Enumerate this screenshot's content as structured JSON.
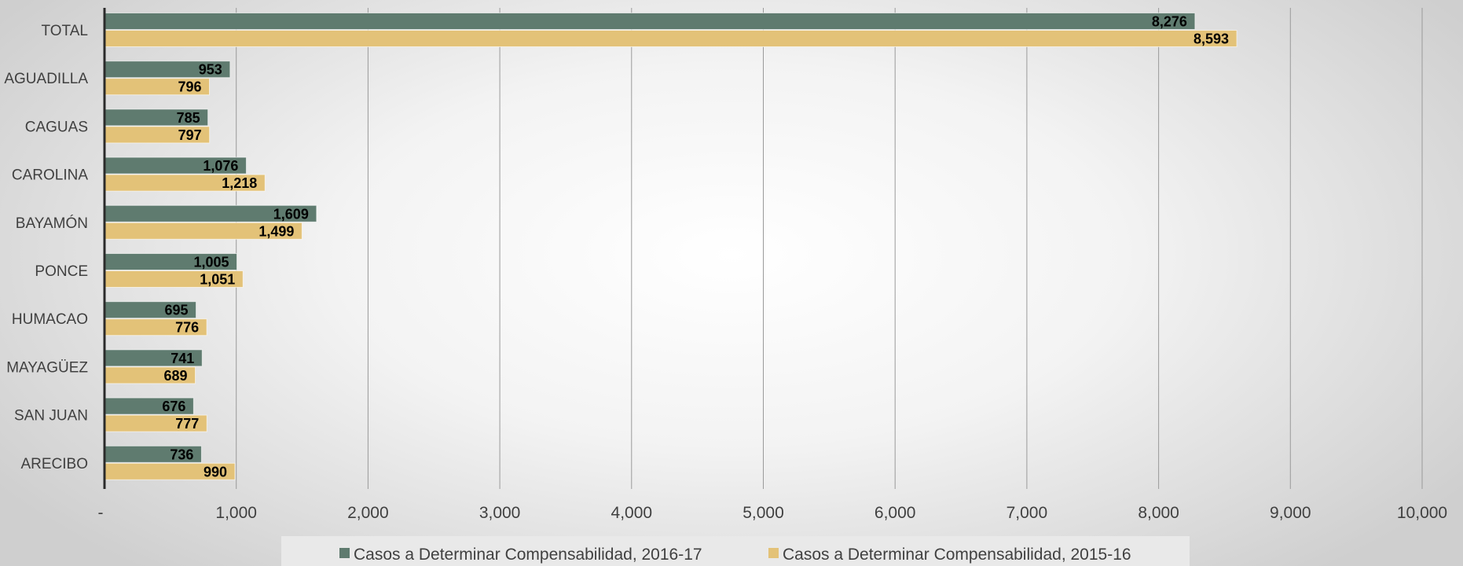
{
  "chart_data": {
    "type": "bar",
    "orientation": "horizontal",
    "categories": [
      "TOTAL",
      "AGUADILLA",
      "CAGUAS",
      "CAROLINA",
      "BAYAMÓN",
      "PONCE",
      "HUMACAO",
      "MAYAGÜEZ",
      "SAN JUAN",
      "ARECIBO"
    ],
    "series": [
      {
        "name": "Casos a Determinar Compensabilidad, 2016-17",
        "color": "#5f7b6f",
        "values": [
          8276,
          953,
          785,
          1076,
          1609,
          1005,
          695,
          741,
          676,
          736
        ],
        "labels": [
          "8,276",
          "953",
          "785",
          "1,076",
          "1,609",
          "1,005",
          "695",
          "741",
          "676",
          "736"
        ]
      },
      {
        "name": "Casos a Determinar Compensabilidad, 2015-16",
        "color": "#e3c278",
        "values": [
          8593,
          796,
          797,
          1218,
          1499,
          1051,
          776,
          689,
          777,
          990
        ],
        "labels": [
          "8,593",
          "796",
          "797",
          "1,218",
          "1,499",
          "1,051",
          "776",
          "689",
          "777",
          "990"
        ]
      }
    ],
    "xlim": [
      0,
      10000
    ],
    "xticks": [
      0,
      1000,
      2000,
      3000,
      4000,
      5000,
      6000,
      7000,
      8000,
      9000,
      10000
    ],
    "xtick_labels": [
      "-",
      "1,000",
      "2,000",
      "3,000",
      "4,000",
      "5,000",
      "6,000",
      "7,000",
      "8,000",
      "9,000",
      "10,000"
    ],
    "grid": true,
    "legend_position": "bottom",
    "title": "",
    "xlabel": "",
    "ylabel": ""
  }
}
